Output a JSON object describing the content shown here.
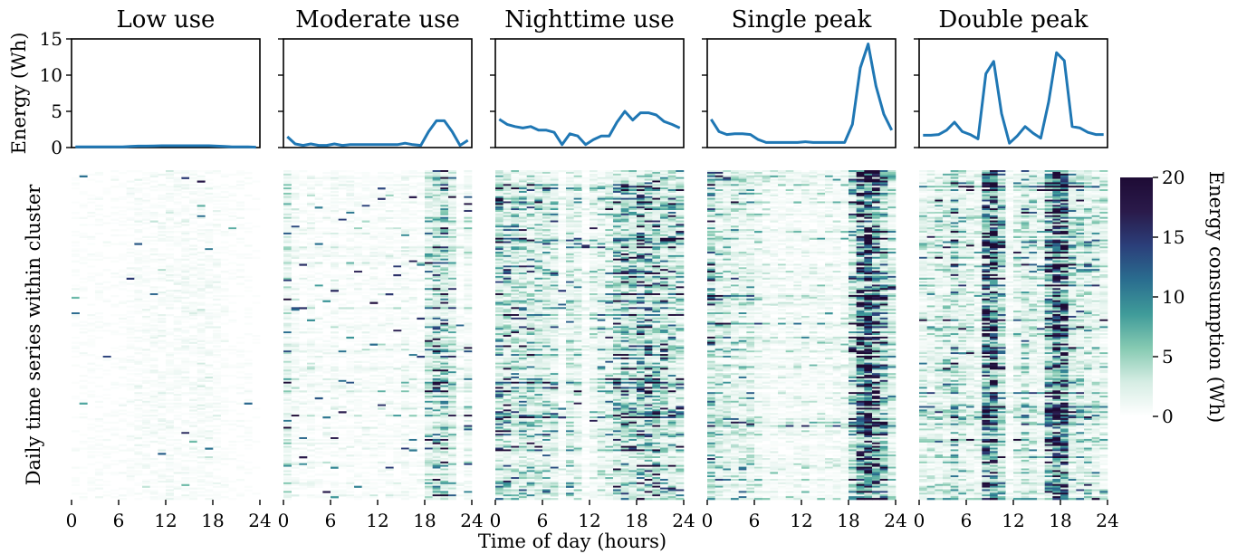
{
  "chart_data": [
    {
      "type": "line",
      "panel": "profiles",
      "ylabel": "Energy (Wh)",
      "ylim": [
        0,
        15
      ],
      "yticks": [
        0,
        5,
        10,
        15
      ],
      "xlim": [
        0,
        24
      ],
      "x_hours": [
        0.5,
        1.5,
        2.5,
        3.5,
        4.5,
        5.5,
        6.5,
        7.5,
        8.5,
        9.5,
        10.5,
        11.5,
        12.5,
        13.5,
        14.5,
        15.5,
        16.5,
        17.5,
        18.5,
        19.5,
        20.5,
        21.5,
        22.5,
        23.5
      ],
      "color": "#1f77b4",
      "series": [
        {
          "name": "Low use",
          "values": [
            0.1,
            0.1,
            0.1,
            0.1,
            0.1,
            0.1,
            0.1,
            0.15,
            0.2,
            0.2,
            0.22,
            0.25,
            0.25,
            0.25,
            0.25,
            0.25,
            0.25,
            0.25,
            0.2,
            0.15,
            0.1,
            0.1,
            0.1,
            0.05
          ]
        },
        {
          "name": "Moderate use",
          "values": [
            1.5,
            0.5,
            0.3,
            0.5,
            0.3,
            0.3,
            0.5,
            0.3,
            0.4,
            0.4,
            0.4,
            0.4,
            0.4,
            0.4,
            0.4,
            0.6,
            0.4,
            0.3,
            2.2,
            3.7,
            3.7,
            2.2,
            0.3,
            1.0
          ]
        },
        {
          "name": "Nighttime use",
          "values": [
            3.9,
            3.2,
            2.9,
            2.7,
            2.9,
            2.4,
            2.4,
            2.1,
            0.4,
            1.9,
            1.6,
            0.4,
            1.1,
            1.6,
            1.6,
            3.5,
            5.0,
            3.8,
            4.8,
            4.8,
            4.5,
            3.6,
            3.2,
            2.7
          ]
        },
        {
          "name": "Single peak",
          "values": [
            3.9,
            2.2,
            1.8,
            1.9,
            1.9,
            1.8,
            1.1,
            0.7,
            0.7,
            0.7,
            0.7,
            0.7,
            0.8,
            0.7,
            0.7,
            0.7,
            0.7,
            0.7,
            3.2,
            11.0,
            14.3,
            8.5,
            4.6,
            2.4
          ]
        },
        {
          "name": "Double peak",
          "values": [
            1.7,
            1.7,
            1.8,
            2.4,
            3.5,
            2.2,
            1.8,
            1.2,
            10.2,
            11.9,
            4.7,
            0.6,
            1.6,
            2.9,
            2.0,
            1.3,
            6.3,
            13.1,
            12.0,
            2.9,
            2.7,
            2.1,
            1.8,
            1.8
          ]
        }
      ]
    },
    {
      "type": "heatmap",
      "panel": "daily-series",
      "ylabel": "Daily time series within cluster",
      "xlabel": "Time of day (hours)",
      "xticks": [
        0,
        6,
        12,
        18,
        24
      ],
      "colorbar": {
        "label": "Energy consumption (Wh)",
        "ticks": [
          0,
          5,
          10,
          15,
          20
        ],
        "range": [
          0,
          20
        ],
        "colors": [
          "#ffffff",
          "#d6ede4",
          "#86cab2",
          "#3f9b99",
          "#2a6d8f",
          "#2b3f7a",
          "#2a1a4a",
          "#1e0b35"
        ]
      },
      "clusters": [
        {
          "name": "Low use",
          "profile_index": 0
        },
        {
          "name": "Moderate use",
          "profile_index": 1
        },
        {
          "name": "Nighttime use",
          "profile_index": 2
        },
        {
          "name": "Single peak",
          "profile_index": 3
        },
        {
          "name": "Double peak",
          "profile_index": 4
        }
      ]
    }
  ]
}
